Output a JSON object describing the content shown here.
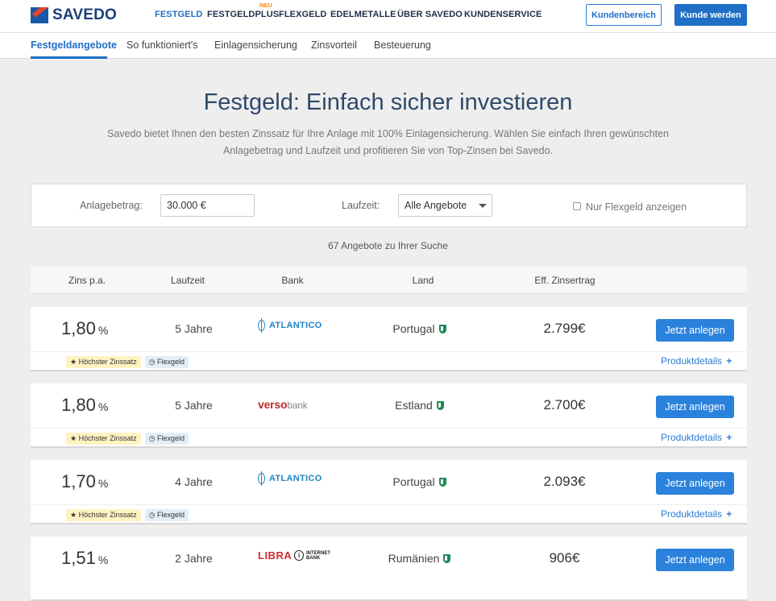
{
  "brand": {
    "name": "SAVEDO"
  },
  "nav": {
    "items": [
      "FESTGELD",
      "FESTGELDPLUS",
      "FLEXGELD",
      "EDELMETALLE",
      "ÜBER SAVEDO",
      "KUNDENSERVICE"
    ],
    "new_badge": "NEU",
    "customer_area": "Kundenbereich",
    "become_customer": "Kunde werden"
  },
  "subnav": {
    "items": [
      "Festgeldangebote",
      "So funktioniert's",
      "Einlagensicherung",
      "Zinsvorteil",
      "Besteuerung"
    ]
  },
  "hero": {
    "title": "Festgeld: Einfach sicher investieren",
    "text_line1": "Savedo bietet Ihnen den besten Zinssatz für Ihre Anlage mit 100% Einlagensicherung. Wählen Sie einfach Ihren gewünschten",
    "text_line2": "Anlagebetrag und Laufzeit und profitieren Sie von Top-Zinsen bei Savedo."
  },
  "filter": {
    "amount_label": "Anlagebetrag:",
    "amount_value": "30.000 €",
    "term_label": "Laufzeit:",
    "term_value": "Alle Angebote",
    "flex_label": "Nur Flexgeld anzeigen",
    "flex_checked": false
  },
  "results": {
    "count_text": "67 Angebote zu Ihrer Suche"
  },
  "table": {
    "headers": [
      "Zins p.a.",
      "Laufzeit",
      "Bank",
      "Land",
      "Eff. Zinsertrag"
    ]
  },
  "offers": [
    {
      "rate": "1,80",
      "unit": "%",
      "term": "5 Jahre",
      "bank": "ATLANTICO",
      "country": "Portugal",
      "earnings": "2.799€",
      "button": "Jetzt anlegen",
      "badge1": "Höchster Zinssatz",
      "badge2": "Flexgeld",
      "details": "Produktdetails",
      "details_plus": "+"
    },
    {
      "rate": "1,80",
      "unit": "%",
      "term": "5 Jahre",
      "bank_a": "verso",
      "bank_b": "bank",
      "country": "Estland",
      "earnings": "2.700€",
      "button": "Jetzt anlegen",
      "badge1": "Höchster Zinssatz",
      "badge2": "Flexgeld",
      "details": "Produktdetails",
      "details_plus": "+"
    },
    {
      "rate": "1,70",
      "unit": "%",
      "term": "4 Jahre",
      "bank": "ATLANTICO",
      "country": "Portugal",
      "earnings": "2.093€",
      "button": "Jetzt anlegen",
      "badge1": "Höchster Zinssatz",
      "badge2": "Flexgeld",
      "details": "Produktdetails",
      "details_plus": "+"
    },
    {
      "rate": "1,51",
      "unit": "%",
      "term": "2 Jahre",
      "bank_a": "LIBRA",
      "bank_b": "INTERNET",
      "bank_c": "BANK",
      "country": "Rumänien",
      "earnings": "906€",
      "button": "Jetzt anlegen"
    }
  ],
  "colors": {
    "primary": "#1f6fc6",
    "accent_orange": "#f28b1b",
    "shield_green": "#1d8a55"
  }
}
